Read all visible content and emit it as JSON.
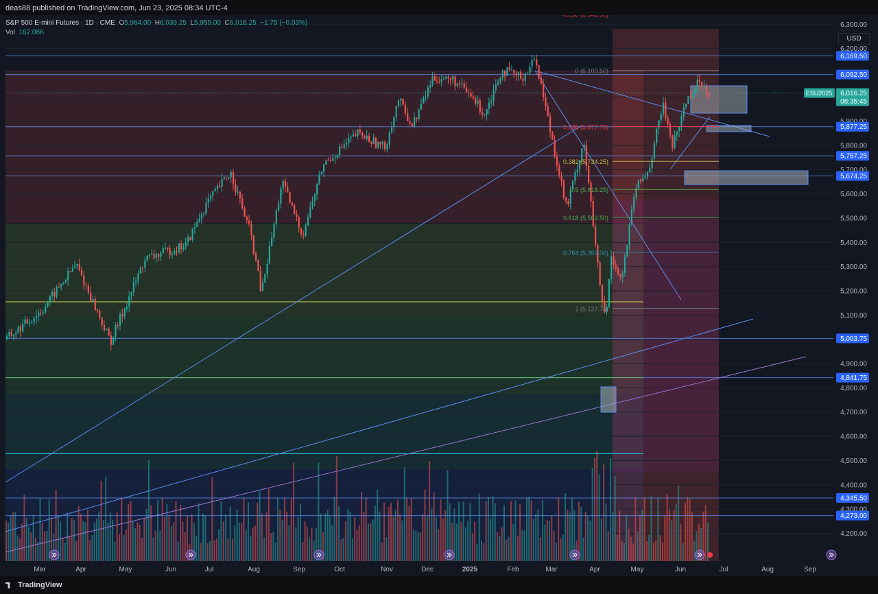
{
  "header": {
    "published": "deas88 published on TradingView.com, Jun 23, 2025 08:34 UTC-4"
  },
  "legend": {
    "symbol": "S&P 500 E-mini Futures · 1D · CME",
    "open_label": "O",
    "open": "5,964.00",
    "high_label": "H",
    "high": "6,039.25",
    "low_label": "L",
    "low": "5,959.00",
    "close_label": "C",
    "close": "6,016.25",
    "change": "−1.75 (−0.03%)",
    "vol_label": "Vol",
    "vol": "162.08K"
  },
  "currency": "USD",
  "price_axis": {
    "ticks": [
      "6,300.00",
      "6,200.00",
      "6,100.00",
      "6,000.00",
      "5,900.00",
      "5,800.00",
      "5,700.00",
      "5,600.00",
      "5,500.00",
      "5,400.00",
      "5,300.00",
      "5,200.00",
      "5,100.00",
      "5,000.00",
      "4,900.00",
      "4,800.00",
      "4,700.00",
      "4,600.00",
      "4,500.00",
      "4,400.00",
      "4,300.00",
      "4,200.00"
    ],
    "tick_values": [
      6300,
      6200,
      6100,
      6000,
      5900,
      5800,
      5700,
      5600,
      5500,
      5400,
      5300,
      5200,
      5100,
      5000,
      4900,
      4800,
      4700,
      4600,
      4500,
      4400,
      4300,
      4200
    ],
    "level_labels": [
      {
        "text": "6,169.50",
        "value": 6169.5
      },
      {
        "text": "6,092.50",
        "value": 6092.5
      },
      {
        "text": "5,877.25",
        "value": 5877.25
      },
      {
        "text": "5,757.25",
        "value": 5757.25
      },
      {
        "text": "5,674.25",
        "value": 5674.25
      },
      {
        "text": "5,003.75",
        "value": 5003.75
      },
      {
        "text": "4,841.75",
        "value": 4841.75
      },
      {
        "text": "4,345.50",
        "value": 4345.5
      },
      {
        "text": "4,273.00",
        "value": 4273
      }
    ],
    "current": {
      "symbol": "ESU2025",
      "price": "6,016.25",
      "countdown": "08:35:45",
      "value": 6016.25
    }
  },
  "time_axis": {
    "labels": [
      "Mar",
      "Apr",
      "May",
      "Jun",
      "Jul",
      "Aug",
      "Sep",
      "Oct",
      "Nov",
      "Dec",
      "2025",
      "Feb",
      "Mar",
      "Apr",
      "May",
      "Jun",
      "Jul",
      "Aug",
      "Sep"
    ],
    "bold": "2025"
  },
  "fib_levels": [
    {
      "text": "-0.236 (6,341.50)",
      "value": 6341.5,
      "color": "#f23645"
    },
    {
      "text": "0 (6,109.50)",
      "value": 6109.5,
      "color": "#787b86"
    },
    {
      "text": "0.236 (5,877.75)",
      "value": 5877.75,
      "color": "#f23645"
    },
    {
      "text": "0.382 (5,734.25)",
      "value": 5734.25,
      "color": "#c9b84b"
    },
    {
      "text": "0.5 (5,618.25)",
      "value": 5618.25,
      "color": "#4caf50"
    },
    {
      "text": "0.618 (5,502.50)",
      "value": 5502.5,
      "color": "#4caf50"
    },
    {
      "text": "0.764 (5,359.00)",
      "value": 5359,
      "color": "#2f8fae"
    },
    {
      "text": "1 (5,127.75)",
      "value": 5127.75,
      "color": "#787b86"
    }
  ],
  "footer": {
    "brand": "TradingView"
  },
  "colors": {
    "up": "#26a69a",
    "down": "#ef5350",
    "bg": "#131722",
    "level": "#5b8def"
  }
}
